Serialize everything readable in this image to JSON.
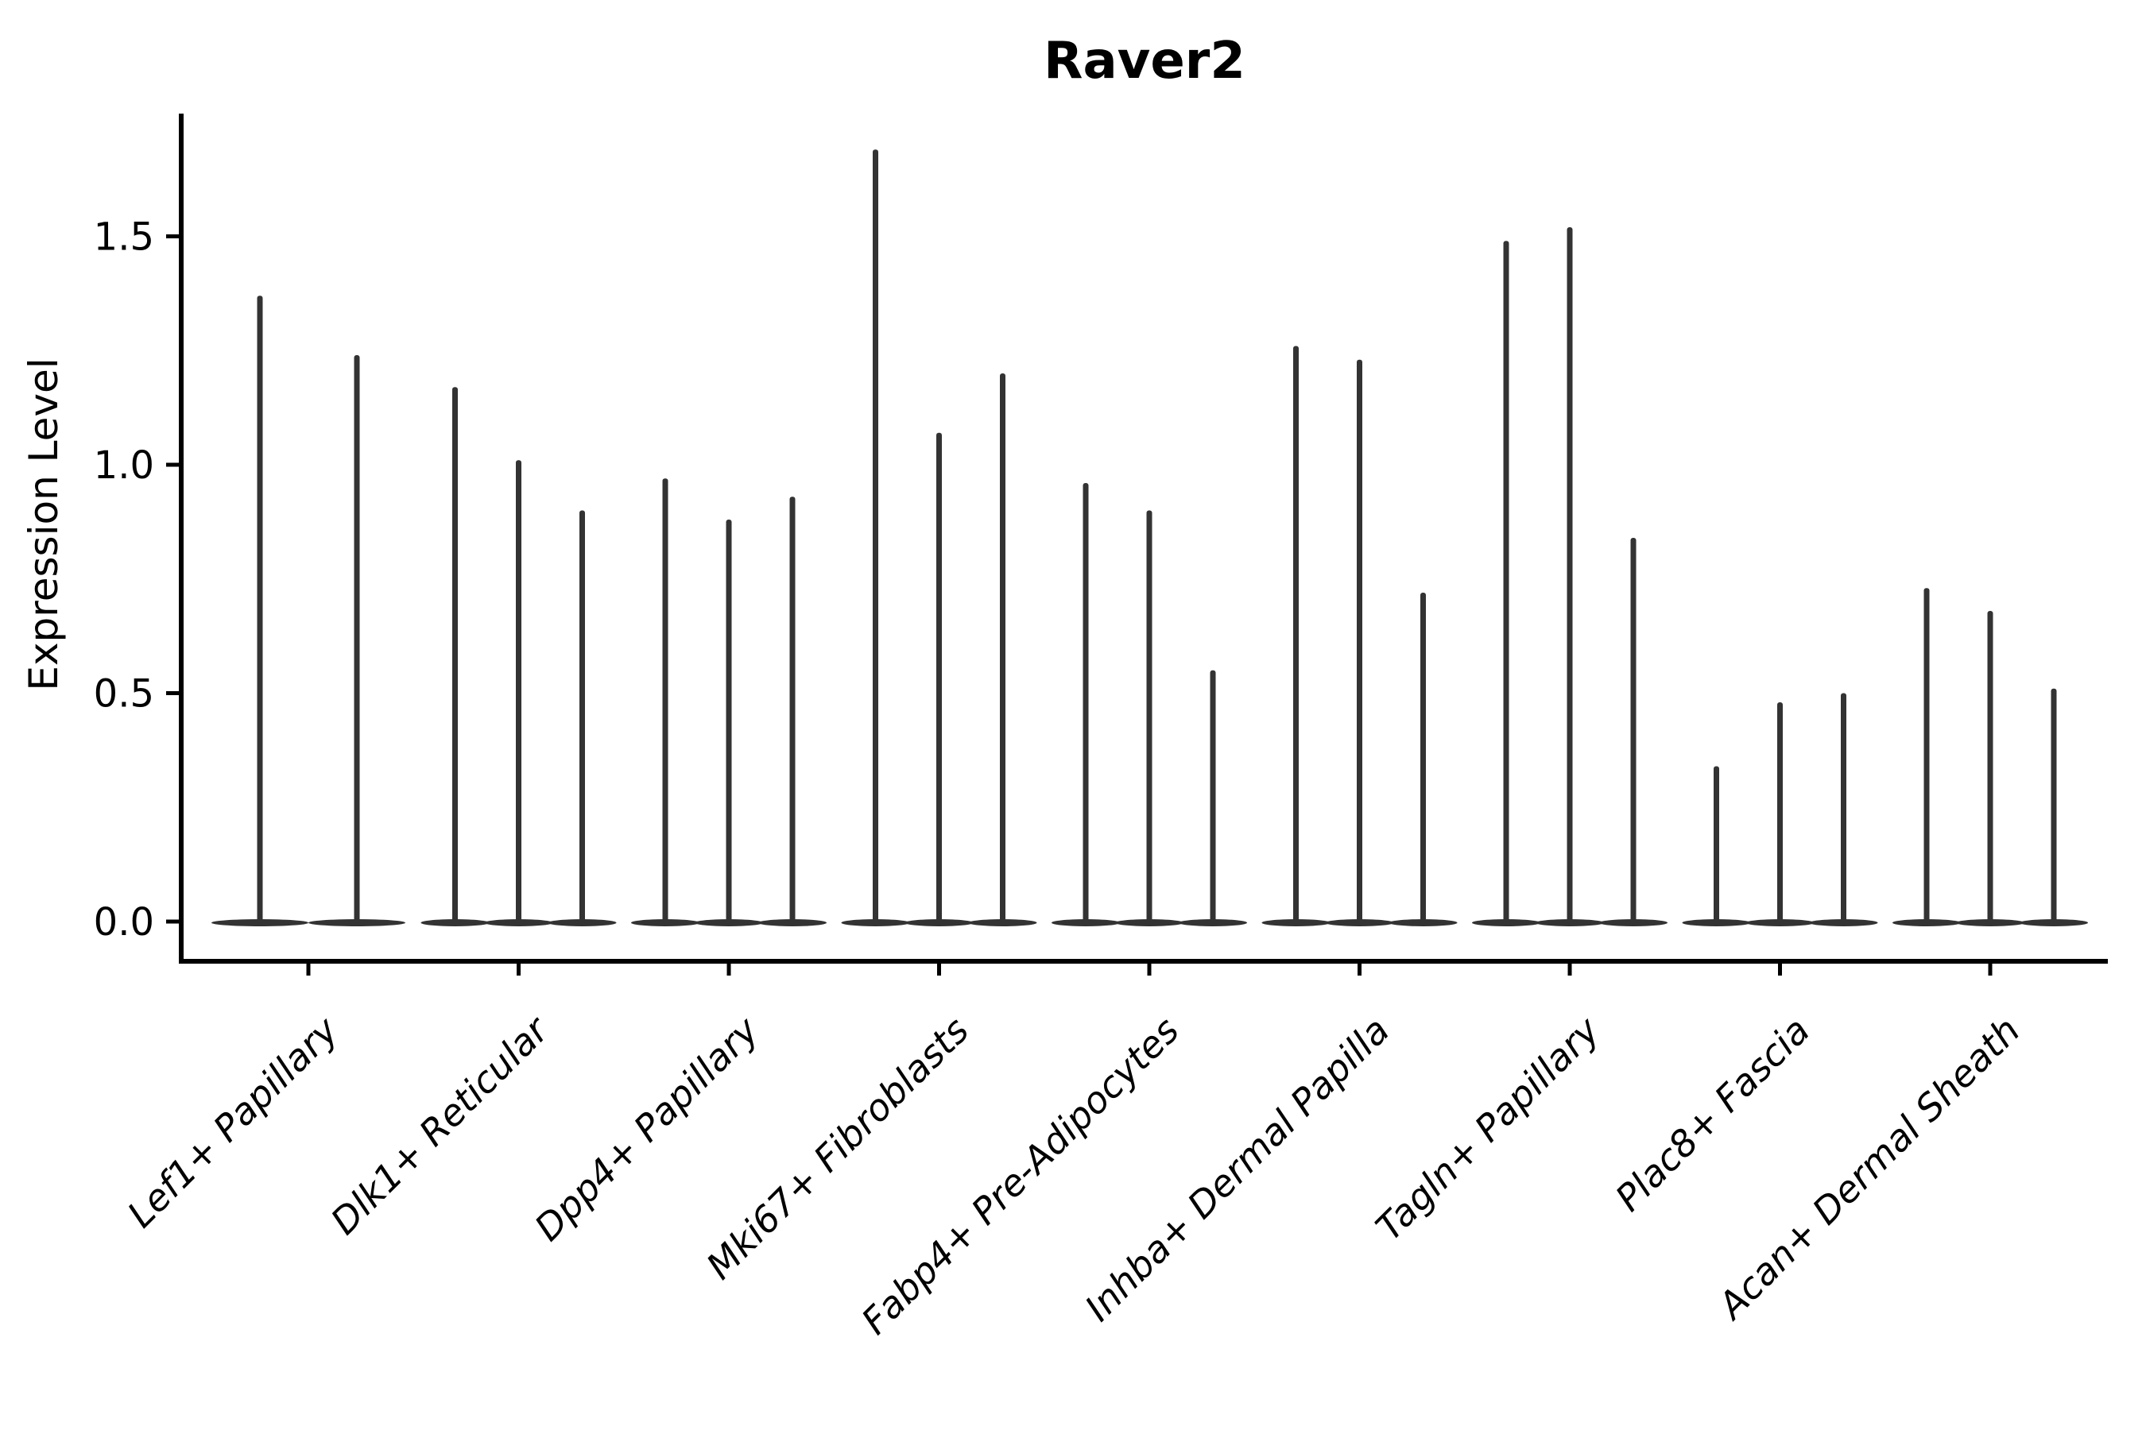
{
  "chart_data": {
    "type": "violin",
    "title": "Raver2",
    "ylabel": "Expression Level",
    "xlabel": "",
    "yticks": [
      "0.0",
      "0.5",
      "1.0",
      "1.5"
    ],
    "ytick_values": [
      0.0,
      0.5,
      1.0,
      1.5
    ],
    "ylim": [
      0,
      1.77
    ],
    "grid": false,
    "legend_position": "none",
    "violin_color": "#333333",
    "axis_color": "#000000",
    "background_color": "#ffffff",
    "categories": [
      "Lef1+ Papillary",
      "Dlk1+ Reticular",
      "Dpp4+ Papillary",
      "Mki67+ Fibroblasts",
      "Fabp4+ Pre-Adipocytes",
      "Inhba+ Dermal Papilla",
      "Tagln+ Papillary",
      "Plac8+ Fascia",
      "Acan+ Dermal Sheath"
    ],
    "series": [
      {
        "category": "Lef1+ Papillary",
        "violin_max_expression": [
          1.37,
          1.24
        ]
      },
      {
        "category": "Dlk1+ Reticular",
        "violin_max_expression": [
          1.17,
          1.01,
          0.9
        ]
      },
      {
        "category": "Dpp4+ Papillary",
        "violin_max_expression": [
          0.97,
          0.88,
          0.93
        ]
      },
      {
        "category": "Mki67+ Fibroblasts",
        "violin_max_expression": [
          1.69,
          1.07,
          1.2
        ]
      },
      {
        "category": "Fabp4+ Pre-Adipocytes",
        "violin_max_expression": [
          0.96,
          0.9,
          0.55
        ]
      },
      {
        "category": "Inhba+ Dermal Papilla",
        "violin_max_expression": [
          1.26,
          1.23,
          0.72
        ]
      },
      {
        "category": "Tagln+ Papillary",
        "violin_max_expression": [
          1.49,
          1.52,
          0.84
        ]
      },
      {
        "category": "Plac8+ Fascia",
        "violin_max_expression": [
          0.34,
          0.48,
          0.5
        ]
      },
      {
        "category": "Acan+ Dermal Sheath",
        "violin_max_expression": [
          0.73,
          0.68,
          0.51
        ]
      }
    ],
    "note": "Density mass concentrated at 0 for every violin (flat wide base with thin spike to max)"
  }
}
